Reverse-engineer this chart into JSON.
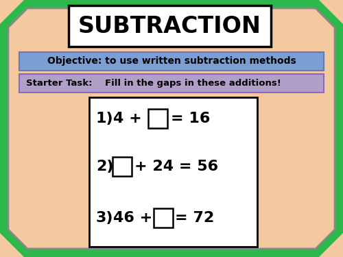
{
  "bg_color": "#F5C9A0",
  "green_color": "#2DB84B",
  "title_text": "SUBTRACTION",
  "title_box_color": "#FFFFFF",
  "objective_text": "Objective: to use written subtraction methods",
  "objective_bg": "#7B9FD4",
  "starter_text": "Starter Task:    Fill in the gaps in these additions!",
  "starter_bg": "#B0A0C8",
  "questions_box_color": "#FFFFFF",
  "font_color": "#000000",
  "octagon_cut": 35,
  "green_color_edge": "#1a9930",
  "inner_edge_color": "#888888"
}
